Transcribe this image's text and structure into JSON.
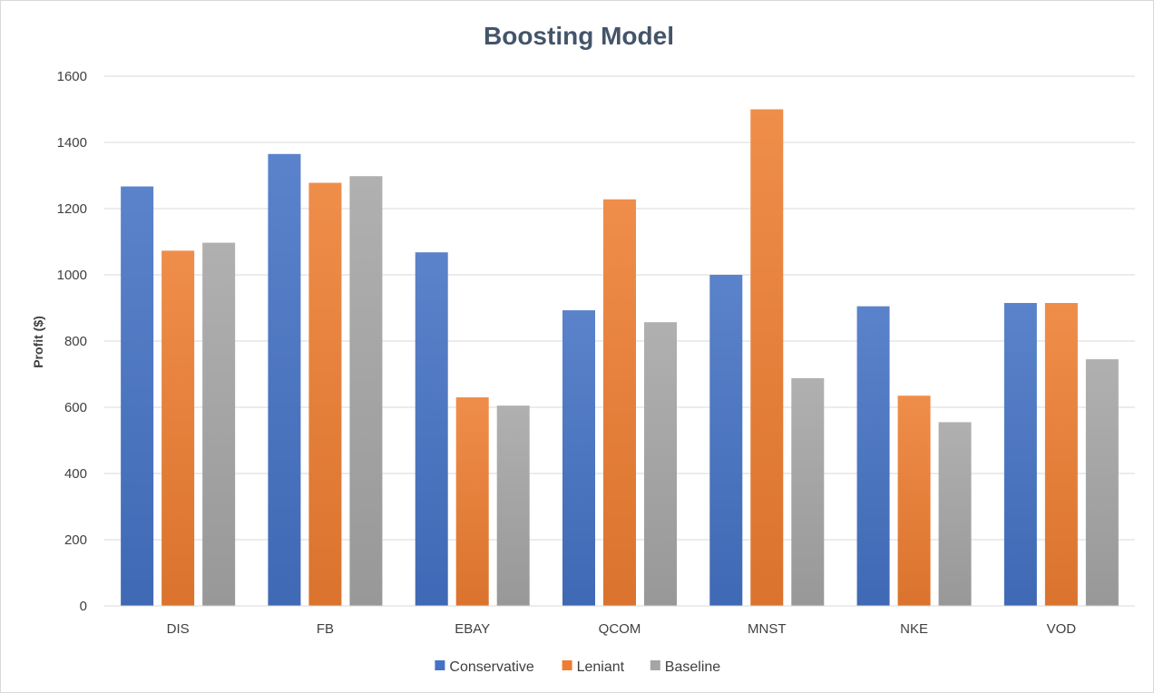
{
  "chart_data": {
    "type": "bar",
    "title": "Boosting Model",
    "xlabel": "",
    "ylabel": "Profit ($)",
    "ylim": [
      0,
      1600
    ],
    "yticks": [
      0,
      200,
      400,
      600,
      800,
      1000,
      1200,
      1400,
      1600
    ],
    "categories": [
      "DIS",
      "FB",
      "EBAY",
      "QCOM",
      "MNST",
      "NKE",
      "VOD"
    ],
    "series": [
      {
        "name": "Conservative",
        "color": "#4472c4",
        "values": [
          1267,
          1365,
          1068,
          893,
          1000,
          905,
          915
        ]
      },
      {
        "name": "Leniant",
        "color": "#ed7d31",
        "values": [
          1073,
          1278,
          630,
          1228,
          1500,
          635,
          915
        ]
      },
      {
        "name": "Baseline",
        "color": "#a5a5a5",
        "values": [
          1097,
          1298,
          605,
          857,
          688,
          555,
          745
        ]
      }
    ],
    "grid": true,
    "legend_position": "bottom"
  }
}
